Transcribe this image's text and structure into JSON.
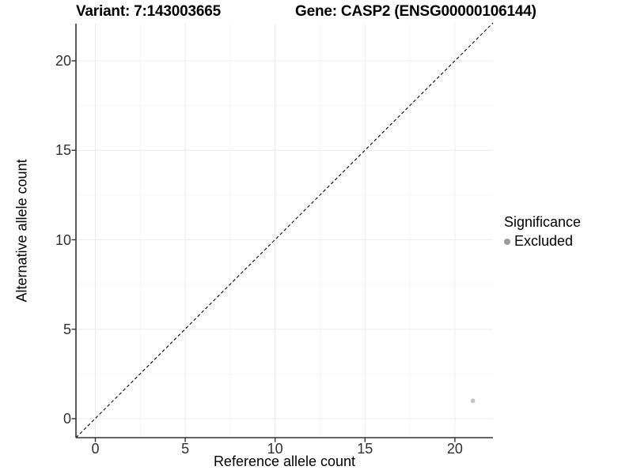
{
  "titles": {
    "left": "Variant: 7:143003665",
    "right": "Gene: CASP2 (ENSG00000106144)"
  },
  "chart_data": {
    "type": "scatter",
    "title": "Variant: 7:143003665   Gene: CASP2 (ENSG00000106144)",
    "xlabel": "Reference allele count",
    "ylabel": "Alternative allele count",
    "x_ticks": [
      0,
      5,
      10,
      15,
      20
    ],
    "y_ticks": [
      0,
      5,
      10,
      15,
      20
    ],
    "x_minor_ticks": [
      2.5,
      7.5,
      12.5,
      17.5
    ],
    "y_minor_ticks": [
      2.5,
      7.5,
      12.5,
      17.5
    ],
    "xlim": [
      -1.08,
      22.12
    ],
    "ylim": [
      -1.06,
      22.14
    ],
    "grid": true,
    "legend_position": "right",
    "reference_line": {
      "type": "identity y=x",
      "style": "dashed",
      "color": "#000000"
    },
    "series": [
      {
        "name": "Excluded",
        "point_color": "#c2c2c2",
        "points": [
          [
            21,
            1
          ]
        ]
      }
    ],
    "legend": {
      "title": "Significance",
      "items": [
        {
          "label": "Excluded",
          "swatch_color": "#9c9c9c"
        }
      ]
    },
    "colors": {
      "background": "#ffffff",
      "grid_major": "#ececec",
      "grid_minor": "#f5f5f5",
      "axis_line": "#333333",
      "tick_mark": "#333333",
      "tick_label": "#303030",
      "text": "#000000"
    }
  }
}
